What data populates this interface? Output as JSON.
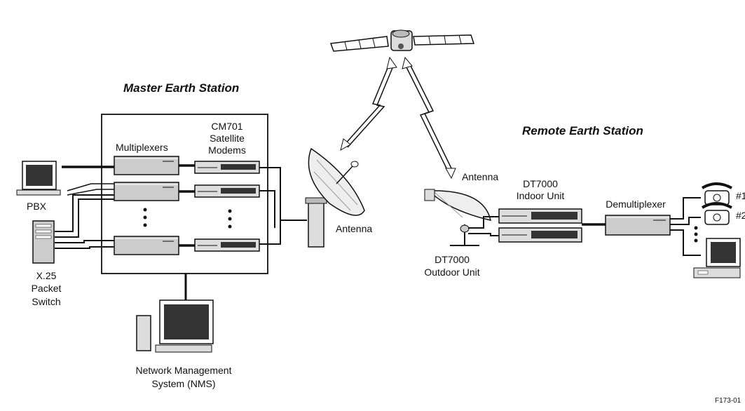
{
  "master": {
    "title": "Master Earth Station",
    "multiplexers": "Multiplexers",
    "modems": [
      "CM701",
      "Satellite",
      "Modems"
    ],
    "antenna": "Antenna"
  },
  "remote": {
    "title": "Remote Earth Station",
    "antenna": "Antenna",
    "indoor": [
      "DT7000",
      "Indoor Unit"
    ],
    "outdoor": [
      "DT7000",
      "Outdoor Unit"
    ],
    "demux": "Demultiplexer",
    "phone_labels": [
      "#1",
      "#2"
    ]
  },
  "pbx": "PBX",
  "x25": [
    "X.25",
    "Packet",
    "Switch"
  ],
  "nms": [
    "Network Management",
    "System (NMS)"
  ],
  "figure_id": "F173-01"
}
